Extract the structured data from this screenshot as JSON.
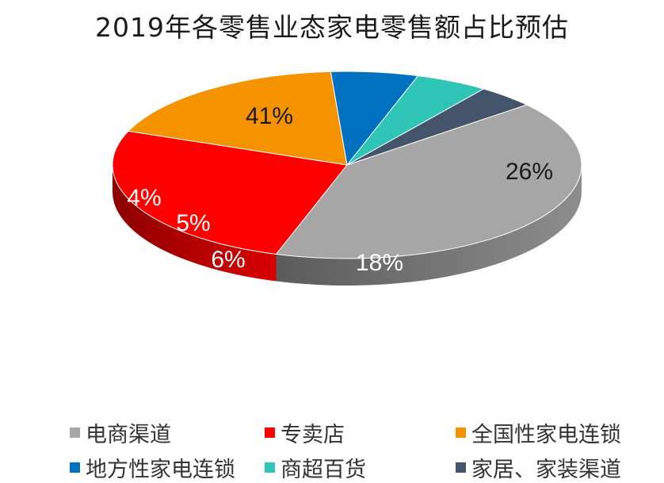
{
  "chart_data": {
    "type": "pie",
    "title": "2019年各零售业态家电零售额占比预估",
    "unit": "%",
    "slices": [
      {
        "label": "电商渠道",
        "value": 41,
        "display": "41%",
        "color": "#a6a6a6"
      },
      {
        "label": "专卖店",
        "value": 26,
        "display": "26%",
        "color": "#ff0000"
      },
      {
        "label": "全国性家电连锁",
        "value": 18,
        "display": "18%",
        "color": "#f59200"
      },
      {
        "label": "地方性家电连锁",
        "value": 6,
        "display": "6%",
        "color": "#0070c0"
      },
      {
        "label": "商超百货",
        "value": 5,
        "display": "5%",
        "color": "#2ec4b6"
      },
      {
        "label": "家居、家装渠道",
        "value": 4,
        "display": "4%",
        "color": "#44546a"
      }
    ],
    "legend_position": "bottom"
  }
}
